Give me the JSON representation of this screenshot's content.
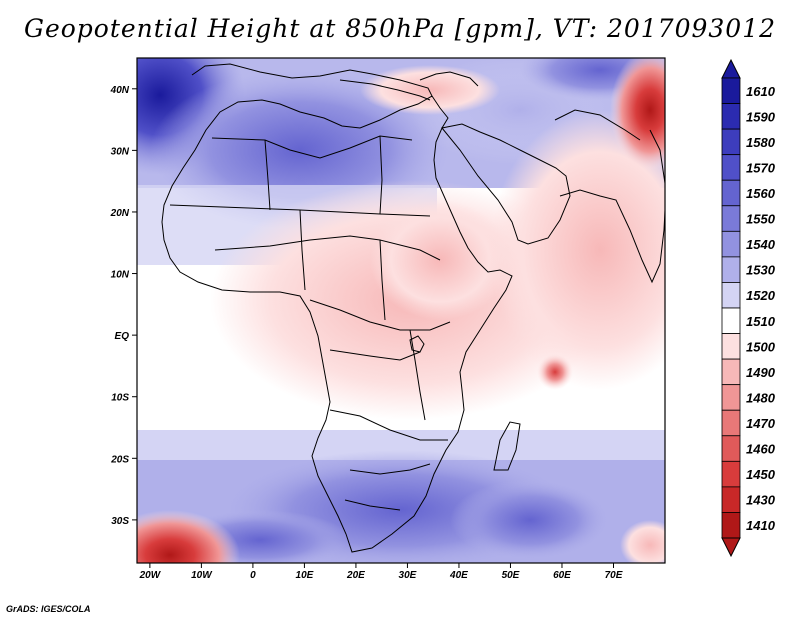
{
  "title": "Geopotential Height at 850hPa [gpm], VT: 2017093012",
  "credit": "GrADS: IGES/COLA",
  "x_axis": {
    "ticks": [
      "20W",
      "10W",
      "0",
      "10E",
      "20E",
      "30E",
      "40E",
      "50E",
      "60E",
      "70E"
    ],
    "lons": [
      -20,
      -10,
      0,
      10,
      20,
      30,
      40,
      50,
      60,
      70
    ],
    "range": [
      -22.5,
      80
    ]
  },
  "y_axis": {
    "ticks": [
      "40N",
      "30N",
      "20N",
      "10N",
      "EQ",
      "10S",
      "20S",
      "30S"
    ],
    "lats": [
      40,
      30,
      20,
      10,
      0,
      -10,
      -20,
      -30
    ],
    "range": [
      -37,
      45
    ]
  },
  "colorbar": {
    "levels": [
      "1610",
      "1590",
      "1580",
      "1570",
      "1560",
      "1550",
      "1540",
      "1530",
      "1520",
      "1510",
      "1500",
      "1490",
      "1480",
      "1470",
      "1460",
      "1450",
      "1430",
      "1410"
    ],
    "colors": [
      "#1a1a9c",
      "#2b2bb0",
      "#3d3dbd",
      "#5050c8",
      "#6464d0",
      "#7a7ad8",
      "#9292e0",
      "#b0b0ea",
      "#d4d4f4",
      "#ffffff",
      "#fde0e0",
      "#f7b8b8",
      "#f09696",
      "#e87878",
      "#e05a5a",
      "#d83c3c",
      "#c82828",
      "#b01818"
    ]
  },
  "colors": {
    "frame": "#000000",
    "coast": "#000000"
  }
}
